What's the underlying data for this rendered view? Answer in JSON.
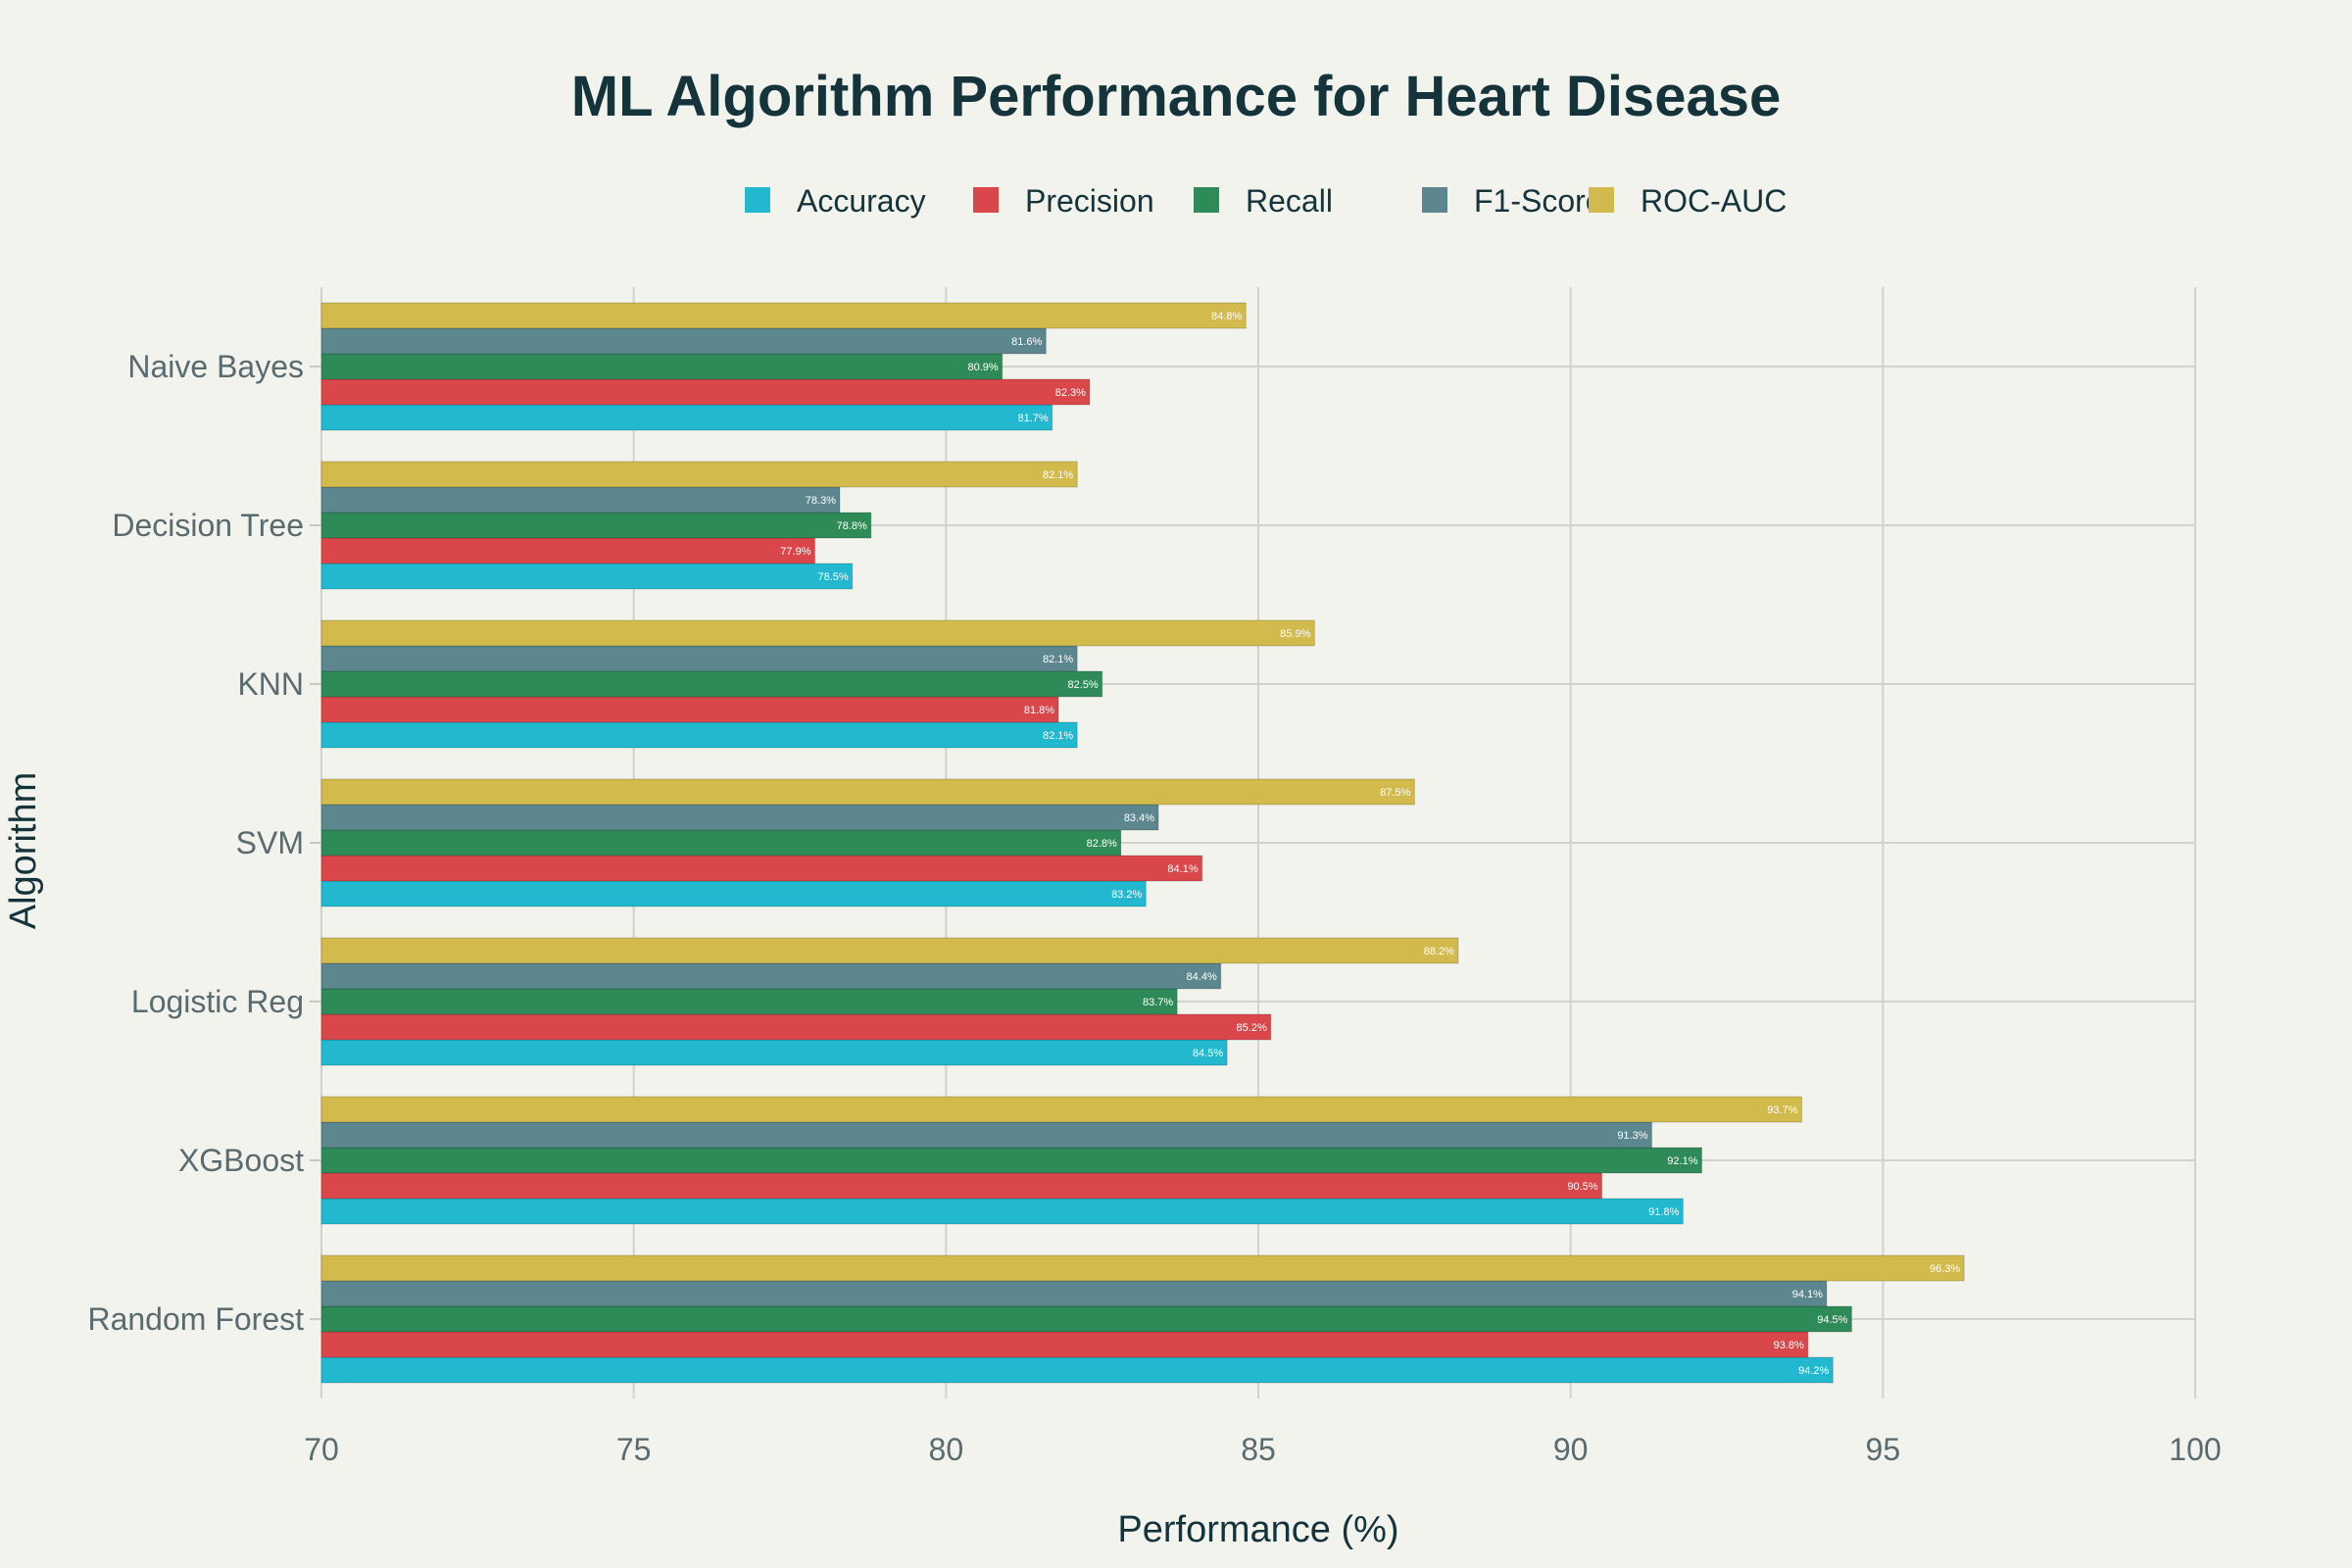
{
  "chart_data": {
    "type": "bar",
    "orientation": "horizontal",
    "title": "ML Algorithm Performance for Heart Disease",
    "xlabel": "Performance (%)",
    "ylabel": "Algorithm",
    "xlim": [
      70,
      100
    ],
    "xticks": [
      70,
      75,
      80,
      85,
      90,
      95,
      100
    ],
    "grid": true,
    "legend_position": "top-center",
    "categories": [
      "Naive Bayes",
      "Decision Tree",
      "KNN",
      "SVM",
      "Logistic Reg",
      "XGBoost",
      "Random Forest"
    ],
    "series": [
      {
        "name": "Accuracy",
        "color": "#22b8cf",
        "values": [
          81.7,
          78.5,
          82.1,
          83.2,
          84.5,
          91.8,
          94.2
        ],
        "labels": [
          "81.7%",
          "78.5%",
          "82.1%",
          "83.2%",
          "84.5%",
          "91.8%",
          "94.2%"
        ]
      },
      {
        "name": "Precision",
        "color": "#d9474b",
        "values": [
          82.3,
          77.9,
          81.8,
          84.1,
          85.2,
          90.5,
          93.8
        ],
        "labels": [
          "82.3%",
          "77.9%",
          "81.8%",
          "84.1%",
          "85.2%",
          "90.5%",
          "93.8%"
        ]
      },
      {
        "name": "Recall",
        "color": "#2e8b57",
        "values": [
          80.9,
          78.8,
          82.5,
          82.8,
          83.7,
          92.1,
          94.5
        ],
        "labels": [
          "80.9%",
          "78.8%",
          "82.5%",
          "82.8%",
          "83.7%",
          "92.1%",
          "94.5%"
        ]
      },
      {
        "name": "F1-Score",
        "color": "#5d878f",
        "values": [
          81.6,
          78.3,
          82.1,
          83.4,
          84.4,
          91.3,
          94.1
        ],
        "labels": [
          "81.6%",
          "78.3%",
          "82.1%",
          "83.4%",
          "84.4%",
          "91.3%",
          "94.1%"
        ]
      },
      {
        "name": "ROC-AUC",
        "color": "#d2ba4c",
        "values": [
          84.8,
          82.1,
          85.9,
          87.5,
          88.2,
          93.7,
          96.3
        ],
        "labels": [
          "84.8%",
          "82.1%",
          "85.9%",
          "87.5%",
          "88.2%",
          "93.7%",
          "96.3%"
        ]
      }
    ]
  }
}
